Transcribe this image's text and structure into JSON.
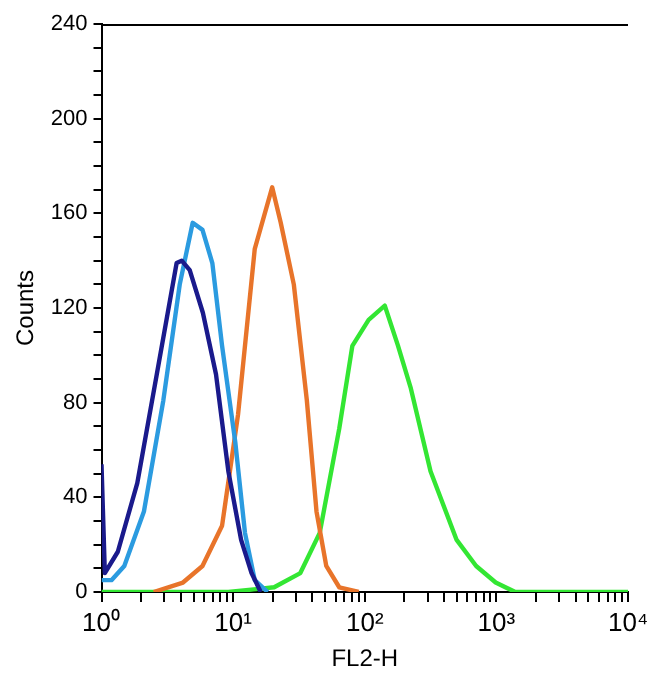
{
  "chart_data": {
    "type": "line",
    "xlabel": "FL2-H",
    "ylabel": "Counts",
    "log": "x",
    "grid": false,
    "legend": false,
    "marker": "none",
    "line_style": "solid",
    "xlim": [
      1,
      10000
    ],
    "ylim": [
      0,
      240
    ],
    "xticks": [
      {
        "value": 1,
        "label": "10⁰"
      },
      {
        "value": 2,
        "label": null
      },
      {
        "value": 3,
        "label": null
      },
      {
        "value": 4,
        "label": null
      },
      {
        "value": 5,
        "label": null
      },
      {
        "value": 6,
        "label": null
      },
      {
        "value": 7,
        "label": null
      },
      {
        "value": 8,
        "label": null
      },
      {
        "value": 9,
        "label": null
      },
      {
        "value": 10,
        "label": "10¹"
      },
      {
        "value": 20,
        "label": null
      },
      {
        "value": 30,
        "label": null
      },
      {
        "value": 40,
        "label": null
      },
      {
        "value": 50,
        "label": null
      },
      {
        "value": 60,
        "label": null
      },
      {
        "value": 70,
        "label": null
      },
      {
        "value": 80,
        "label": null
      },
      {
        "value": 90,
        "label": null
      },
      {
        "value": 100,
        "label": "10²"
      },
      {
        "value": 200,
        "label": null
      },
      {
        "value": 300,
        "label": null
      },
      {
        "value": 400,
        "label": null
      },
      {
        "value": 500,
        "label": null
      },
      {
        "value": 600,
        "label": null
      },
      {
        "value": 700,
        "label": null
      },
      {
        "value": 800,
        "label": null
      },
      {
        "value": 900,
        "label": null
      },
      {
        "value": 1000,
        "label": "10³"
      },
      {
        "value": 2000,
        "label": null
      },
      {
        "value": 3000,
        "label": null
      },
      {
        "value": 4000,
        "label": null
      },
      {
        "value": 5000,
        "label": null
      },
      {
        "value": 6000,
        "label": null
      },
      {
        "value": 7000,
        "label": null
      },
      {
        "value": 8000,
        "label": null
      },
      {
        "value": 9000,
        "label": null
      },
      {
        "value": 10000,
        "label": "10⁴"
      }
    ],
    "yticks": [
      0,
      {
        "value": 10,
        "label": null
      },
      {
        "value": 20,
        "label": null
      },
      {
        "value": 30,
        "label": null
      },
      40,
      {
        "value": 50,
        "label": null
      },
      {
        "value": 60,
        "label": null
      },
      {
        "value": 70,
        "label": null
      },
      80,
      {
        "value": 90,
        "label": null
      },
      {
        "value": 100,
        "label": null
      },
      {
        "value": 110,
        "label": null
      },
      120,
      {
        "value": 130,
        "label": null
      },
      {
        "value": 140,
        "label": null
      },
      {
        "value": 150,
        "label": null
      },
      160,
      {
        "value": 170,
        "label": null
      },
      {
        "value": 180,
        "label": null
      },
      {
        "value": 190,
        "label": null
      },
      200,
      {
        "value": 210,
        "label": null
      },
      {
        "value": 220,
        "label": null
      },
      {
        "value": 230,
        "label": null
      },
      240
    ],
    "series": [
      {
        "color": "#1a1a8c",
        "x": [
          1,
          1.06,
          1.33,
          1.87,
          2.63,
          3.72,
          4.07,
          4.68,
          5.89,
          7.41,
          9.2,
          11.5,
          13.8,
          16.2
        ],
        "values": [
          54,
          8,
          17,
          46,
          92,
          139,
          140,
          136,
          118,
          92,
          51,
          22,
          8,
          0
        ]
      },
      {
        "color": "#2b9be0",
        "x": [
          1,
          1.19,
          1.49,
          2.1,
          2.95,
          3.93,
          4.93,
          5.85,
          6.95,
          8.24,
          10.4,
          12.3,
          14.6,
          18.3
        ],
        "values": [
          5,
          5,
          11,
          34,
          81,
          130,
          156,
          153,
          139,
          104,
          63,
          25,
          5,
          0
        ]
      },
      {
        "color": "#e8742a",
        "x": [
          2.49,
          4.16,
          5.85,
          8.24,
          10.9,
          14.6,
          19.8,
          23,
          28.9,
          36.3,
          43,
          51,
          64,
          90
        ],
        "values": [
          0,
          4,
          11,
          28,
          75,
          145,
          171,
          156,
          130,
          81,
          34,
          11,
          2,
          0
        ]
      },
      {
        "color": "#33e633",
        "x": [
          1,
          9.2,
          20.5,
          32.4,
          45.5,
          64,
          80.5,
          107,
          142,
          179,
          224,
          316,
          499,
          702,
          988,
          1393,
          10000
        ],
        "values": [
          0,
          0,
          2,
          8,
          25,
          69,
          104,
          115,
          121,
          104,
          86,
          51,
          22,
          11,
          4,
          0,
          0
        ]
      }
    ]
  }
}
